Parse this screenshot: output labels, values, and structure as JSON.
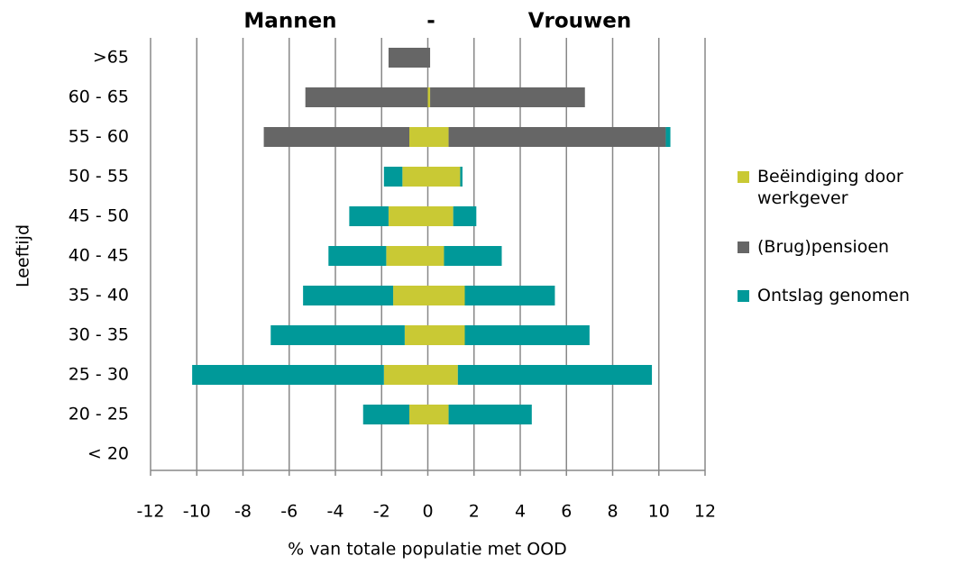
{
  "chart_data": {
    "type": "diverging-stacked-bar",
    "title_left": "Mannen",
    "title_sep": "-",
    "title_right": "Vrouwen",
    "x_label": "% van totale populatie met OOD",
    "y_label": "Leeftijd",
    "categories": [
      ">65",
      "60 - 65",
      "55 - 60",
      "50 - 55",
      "45 - 50",
      "40 - 45",
      "35 - 40",
      "30 - 35",
      "25 - 30",
      "20 - 25",
      "< 20"
    ],
    "series": [
      {
        "name": "Beëindiging door werkgever",
        "color": "#c9c934",
        "men": [
          0,
          0,
          -0.8,
          -1.1,
          -1.7,
          -1.8,
          -1.5,
          -1.0,
          -1.9,
          -0.8,
          0
        ],
        "women": [
          0,
          0.1,
          0.9,
          1.4,
          1.1,
          0.7,
          1.6,
          1.6,
          1.3,
          0.9,
          0
        ]
      },
      {
        "name": "(Brug)pensioen",
        "color": "#666666",
        "men": [
          -1.7,
          -5.3,
          -6.3,
          0,
          0,
          0,
          0,
          0,
          0,
          0,
          0
        ],
        "women": [
          0.1,
          6.7,
          9.4,
          0,
          0,
          0,
          0,
          0,
          0,
          0,
          0
        ]
      },
      {
        "name": "Ontslag genomen",
        "color": "#009999",
        "men": [
          0,
          0,
          0,
          -0.8,
          -1.7,
          -2.5,
          -3.9,
          -5.8,
          -8.3,
          -2.0,
          0
        ],
        "women": [
          0,
          0,
          0.2,
          0.1,
          1.0,
          2.5,
          3.9,
          5.4,
          8.4,
          3.6,
          0
        ]
      }
    ],
    "xlim": [
      -12,
      12
    ],
    "xticks": [
      -12,
      -10,
      -8,
      -6,
      -4,
      -2,
      0,
      2,
      4,
      6,
      8,
      10,
      12
    ],
    "grid": true
  }
}
